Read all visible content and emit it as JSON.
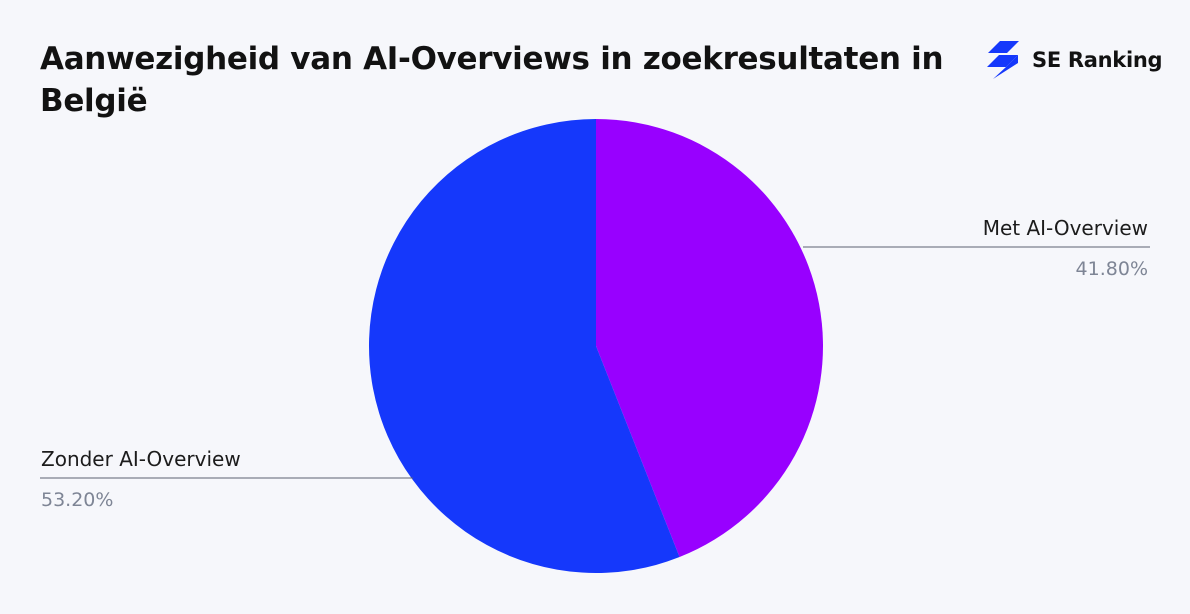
{
  "brand": {
    "name": "SE Ranking",
    "logo_icon": "lightning-bolt-logo-icon",
    "accent": "#1538fb"
  },
  "chart_data": {
    "type": "pie",
    "title": "Aanwezigheid van AI-Overviews in zoekresultaten in België",
    "slices": [
      {
        "label": "Met AI-Overview",
        "value": 41.8,
        "display": "41.80%",
        "color": "#9800ff"
      },
      {
        "label": "Zonder AI-Overview",
        "value": 53.2,
        "display": "53.20%",
        "color": "#1538fb"
      }
    ]
  }
}
